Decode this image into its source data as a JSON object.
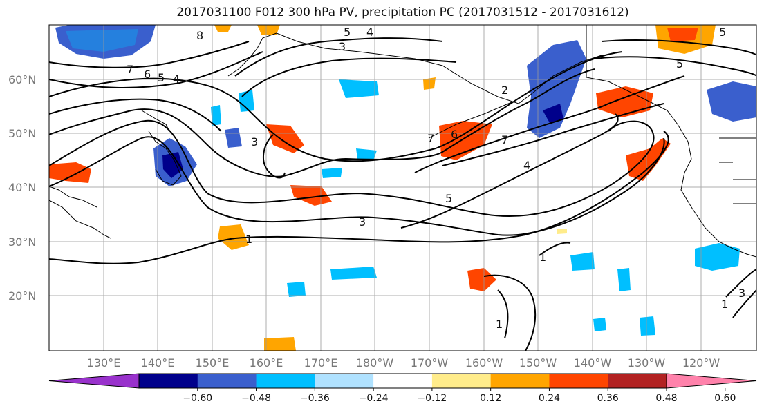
{
  "title": "2017031100 F012 300 hPa PV, precipitation PC (2017031512 - 2017031612)",
  "lat_labels": [
    "60°N",
    "50°N",
    "40°N",
    "30°N",
    "20°N"
  ],
  "lon_labels": [
    "130°E",
    "140°E",
    "150°E",
    "160°E",
    "170°E",
    "180°W",
    "170°W",
    "160°W",
    "150°W",
    "140°W",
    "130°W",
    "120°W"
  ],
  "colorbar": {
    "colors": [
      "#9932cc",
      "#00008b",
      "#3a5fcd",
      "#00bfff",
      "#b0e2ff",
      "#ffffff",
      "#ffec8b",
      "#ffa500",
      "#ff4500",
      "#b22222",
      "#ff82ab"
    ],
    "ticks": [
      "−0.60",
      "−0.48",
      "−0.36",
      "−0.24",
      "−0.12",
      "0.12",
      "0.24",
      "0.36",
      "0.48",
      "0.60"
    ]
  },
  "contour_labels": [
    "8",
    "7",
    "6",
    "5",
    "4",
    "5",
    "3",
    "3",
    "4",
    "7",
    "6",
    "7",
    "5",
    "3",
    "1",
    "5",
    "4",
    "1",
    "1",
    "1",
    "3",
    "5",
    "2"
  ]
}
